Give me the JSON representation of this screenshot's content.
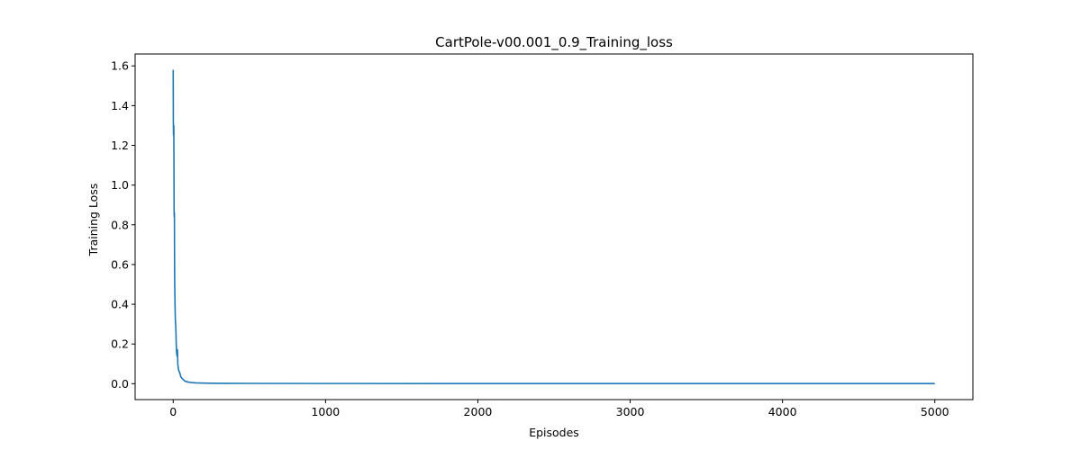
{
  "chart_data": {
    "type": "line",
    "title": "CartPole-v00.001_0.9_Training_loss",
    "xlabel": "Episodes",
    "ylabel": "Training Loss",
    "xlim": [
      -250,
      5250
    ],
    "ylim": [
      -0.08,
      1.66
    ],
    "xticks": [
      0,
      1000,
      2000,
      3000,
      4000,
      5000
    ],
    "yticks": [
      0.0,
      0.2,
      0.4,
      0.6,
      0.8,
      1.0,
      1.2,
      1.4,
      1.6
    ],
    "ytick_labels": [
      "0.0",
      "0.2",
      "0.4",
      "0.6",
      "0.8",
      "1.0",
      "1.2",
      "1.4",
      "1.6"
    ],
    "grid": false,
    "legend": "none",
    "series": [
      {
        "color": "#1f77b4",
        "x": [
          0,
          1,
          2,
          3,
          4,
          5,
          6,
          7,
          8,
          9,
          10,
          12,
          14,
          16,
          18,
          20,
          22,
          25,
          28,
          30,
          35,
          40,
          45,
          50,
          60,
          70,
          80,
          100,
          120,
          150,
          200,
          300,
          500,
          1000,
          2000,
          3000,
          4000,
          5000
        ],
        "y": [
          1.58,
          1.32,
          1.25,
          1.28,
          1.3,
          1.1,
          0.86,
          0.84,
          0.86,
          0.6,
          0.5,
          0.4,
          0.32,
          0.3,
          0.26,
          0.2,
          0.16,
          0.14,
          0.17,
          0.1,
          0.07,
          0.06,
          0.05,
          0.035,
          0.025,
          0.018,
          0.012,
          0.008,
          0.006,
          0.004,
          0.003,
          0.002,
          0.0015,
          0.001,
          0.0008,
          0.0006,
          0.0005,
          0.0005
        ]
      }
    ]
  }
}
